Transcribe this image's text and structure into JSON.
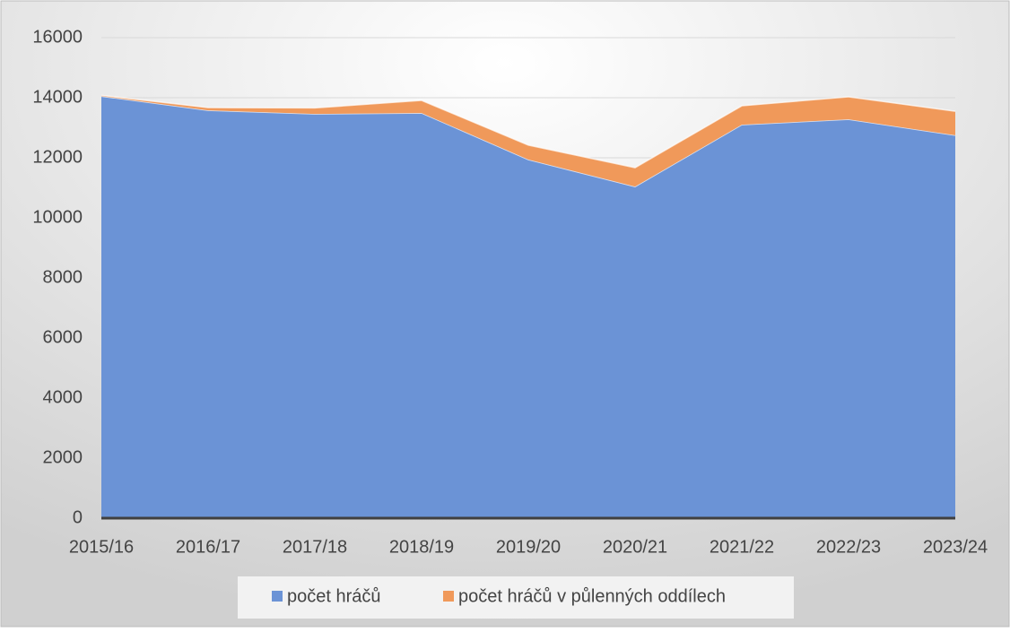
{
  "chart_data": {
    "type": "stacked_area",
    "categories": [
      "2015/16",
      "2016/17",
      "2017/18",
      "2018/19",
      "2019/20",
      "2020/21",
      "2021/22",
      "2022/23",
      "2023/24"
    ],
    "series": [
      {
        "name": "počet hráčů",
        "color": "#6b93d6",
        "values": [
          14050,
          13580,
          13460,
          13490,
          11940,
          11040,
          13100,
          13280,
          12750
        ]
      },
      {
        "name": "počet hráčů v půlenných oddílech",
        "color": "#f0995a",
        "values": [
          30,
          90,
          200,
          420,
          480,
          630,
          630,
          750,
          800
        ]
      }
    ],
    "ylim": [
      0,
      16000
    ],
    "yticks": [
      0,
      2000,
      4000,
      6000,
      8000,
      10000,
      12000,
      14000,
      16000
    ],
    "grid": true,
    "legend": "bottom"
  }
}
